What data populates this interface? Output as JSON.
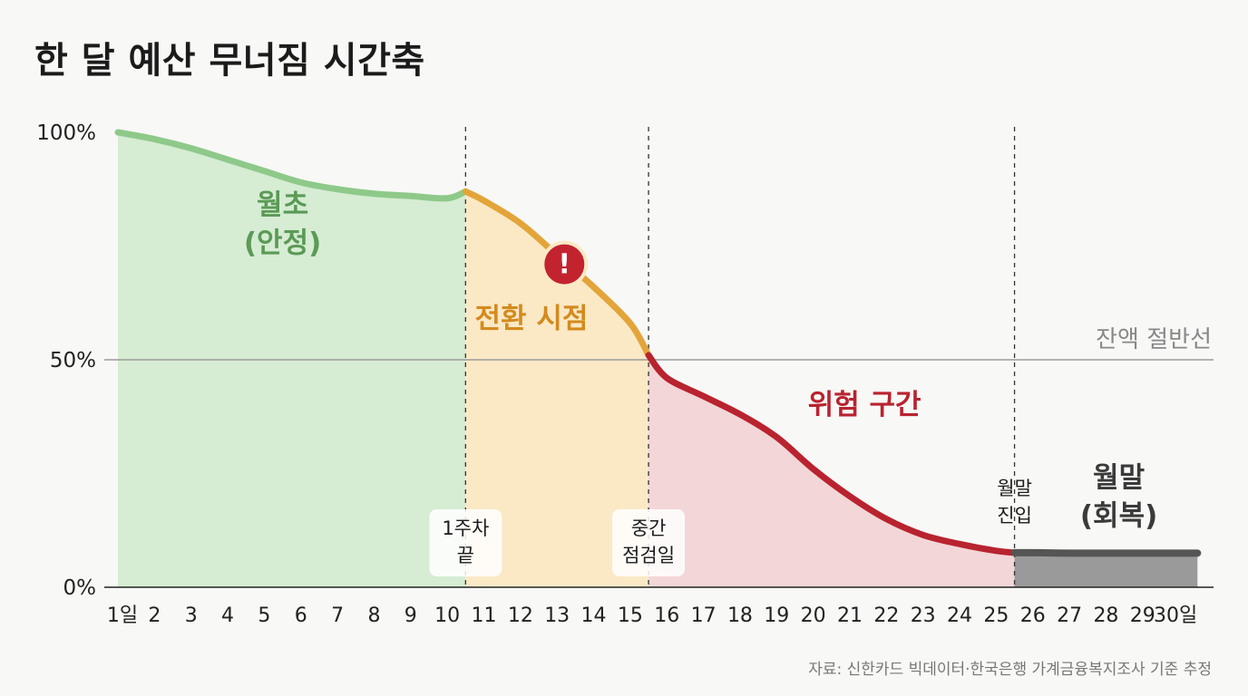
{
  "title": "한 달 예산 무너짐 시간축",
  "source": "자료: 신한카드 빅데이터·한국은행 가계금융복지조사 기준 추정",
  "colors": {
    "stable": "#8ec98a",
    "stable_fill": "#d6ecd3",
    "stable_text": "#5a9a56",
    "transition": "#e3a53a",
    "transition_fill": "#fbe9c6",
    "transition_text": "#d48a1e",
    "danger": "#b8232f",
    "danger_fill": "#f3d6d8",
    "danger_text": "#b8232f",
    "recovery": "#555555",
    "recovery_fill": "#9a9a9a"
  },
  "chart_data": {
    "type": "area",
    "xlabel": "",
    "ylabel": "",
    "ylim": [
      0,
      100
    ],
    "x_tick_labels": [
      "1일",
      "2",
      "3",
      "4",
      "5",
      "6",
      "7",
      "8",
      "9",
      "10",
      "11",
      "12",
      "13",
      "14",
      "15",
      "16",
      "17",
      "18",
      "19",
      "20",
      "21",
      "22",
      "23",
      "24",
      "25",
      "26",
      "27",
      "28",
      "29",
      "30일"
    ],
    "y_tick_labels": [
      "0%",
      "50%",
      "100%"
    ],
    "y_ticks": [
      0,
      50,
      100
    ],
    "points": [
      [
        1,
        100
      ],
      [
        2,
        98.5
      ],
      [
        3,
        96.5
      ],
      [
        4,
        94
      ],
      [
        5,
        91.5
      ],
      [
        6,
        89
      ],
      [
        7,
        87.5
      ],
      [
        8,
        86.5
      ],
      [
        9,
        86
      ],
      [
        10,
        85.5
      ],
      [
        10.5,
        87
      ],
      [
        11,
        85
      ],
      [
        12,
        80
      ],
      [
        13,
        73
      ],
      [
        14,
        66
      ],
      [
        15,
        58
      ],
      [
        15.5,
        51
      ],
      [
        16,
        46
      ],
      [
        17,
        42
      ],
      [
        18,
        38
      ],
      [
        19,
        33
      ],
      [
        20,
        26
      ],
      [
        21,
        20
      ],
      [
        22,
        15
      ],
      [
        23,
        11.5
      ],
      [
        24,
        9.5
      ],
      [
        25,
        8
      ],
      [
        25.5,
        7.6
      ],
      [
        26,
        7.6
      ],
      [
        27,
        7.5
      ],
      [
        28,
        7.5
      ],
      [
        29,
        7.5
      ],
      [
        30.5,
        7.5
      ]
    ],
    "boundaries": [
      10.5,
      15.5,
      25.5
    ],
    "reference_line": {
      "value": 50,
      "label": "잔액 절반선"
    },
    "zones": [
      {
        "label_line1": "월초",
        "label_line2": "(안정)",
        "x_start": 1,
        "x_end": 10.5,
        "label_x": 5.5,
        "label_y": 82
      },
      {
        "label_line1": "전환 시점",
        "label_line2": "",
        "x_start": 10.5,
        "x_end": 15.5,
        "label_x": 12.3,
        "label_y": 57
      },
      {
        "label_line1": "위험 구간",
        "label_line2": "",
        "x_start": 15.5,
        "x_end": 25.5,
        "label_x": 21.4,
        "label_y": 38
      },
      {
        "label_line1": "월말",
        "label_line2": "(회복)",
        "x_start": 25.5,
        "x_end": 30.5,
        "label_x": 28.35,
        "label_y": 22
      }
    ],
    "annotations": [
      {
        "line1": "1주차",
        "line2": "끝",
        "x": 10.5
      },
      {
        "line1": "중간",
        "line2": "점검일",
        "x": 15.5
      },
      {
        "line1": "월말",
        "line2": "진입",
        "x": 25.5
      }
    ],
    "warning_marker": {
      "symbol": "!",
      "x": 13.2,
      "y": 71
    }
  }
}
